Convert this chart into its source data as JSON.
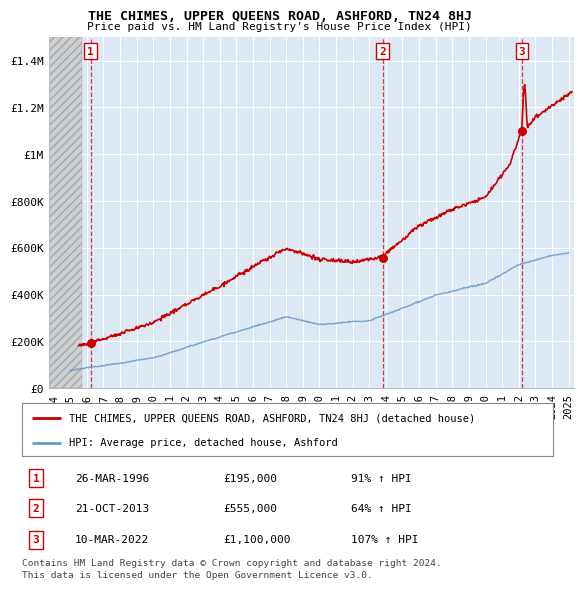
{
  "title": "THE CHIMES, UPPER QUEENS ROAD, ASHFORD, TN24 8HJ",
  "subtitle": "Price paid vs. HM Land Registry's House Price Index (HPI)",
  "xlim": [
    1993.7,
    2025.3
  ],
  "ylim": [
    0,
    1500000
  ],
  "yticks": [
    0,
    200000,
    400000,
    600000,
    800000,
    1000000,
    1200000,
    1400000
  ],
  "ytick_labels": [
    "£0",
    "£200K",
    "£400K",
    "£600K",
    "£800K",
    "£1M",
    "£1.2M",
    "£1.4M"
  ],
  "xtick_start": 1994,
  "xtick_end": 2025,
  "bg_color": "#dce9f5",
  "grid_color": "#ffffff",
  "transactions": [
    {
      "year": 1996.23,
      "price": 195000,
      "number": 1
    },
    {
      "year": 2013.8,
      "price": 555000,
      "number": 2
    },
    {
      "year": 2022.19,
      "price": 1100000,
      "number": 3
    }
  ],
  "transaction_info": [
    {
      "num": 1,
      "date": "26-MAR-1996",
      "price": "£195,000",
      "pct": "91% ↑ HPI"
    },
    {
      "num": 2,
      "date": "21-OCT-2013",
      "price": "£555,000",
      "pct": "64% ↑ HPI"
    },
    {
      "num": 3,
      "date": "10-MAR-2022",
      "price": "£1,100,000",
      "pct": "107% ↑ HPI"
    }
  ],
  "legend_line1": "THE CHIMES, UPPER QUEENS ROAD, ASHFORD, TN24 8HJ (detached house)",
  "legend_line2": "HPI: Average price, detached house, Ashford",
  "footer_line1": "Contains HM Land Registry data © Crown copyright and database right 2024.",
  "footer_line2": "This data is licensed under the Open Government Licence v3.0.",
  "property_line_color": "#cc0000",
  "hpi_line_color": "#6699cc",
  "dashed_line_color": "#cc0000",
  "marker_color": "#cc0000",
  "hatch_end_x": 1995.7
}
